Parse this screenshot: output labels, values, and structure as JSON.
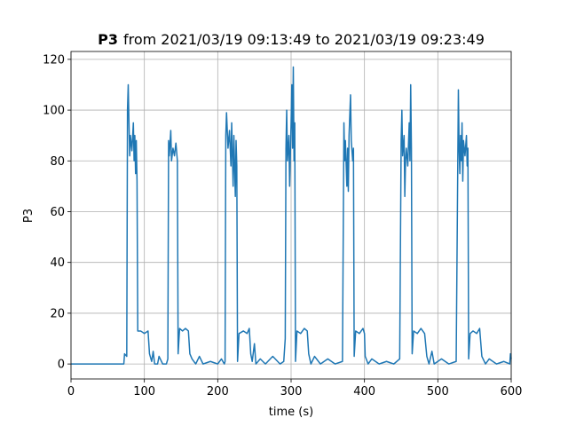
{
  "chart_data": {
    "type": "line",
    "title": [
      "P3",
      "from 2021/03/19 09:13:49 to 2021/03/19 09:23:49"
    ],
    "xlabel": "time (s)",
    "ylabel": "P3",
    "color": "#1f77b4",
    "grid": true,
    "xlim": [
      0,
      600
    ],
    "xticks": [
      0,
      100,
      200,
      300,
      400,
      500,
      600
    ],
    "ylim": [
      -5.9,
      123.1
    ],
    "yticks": [
      0,
      20,
      40,
      60,
      80,
      100,
      120
    ],
    "x": [
      0,
      72,
      73,
      76,
      77,
      78,
      79,
      80,
      81,
      83,
      85,
      86,
      87,
      88,
      89,
      90,
      91,
      95,
      100,
      105,
      107,
      110,
      112,
      114,
      118,
      120,
      125,
      130,
      132,
      133,
      134,
      136,
      137,
      139,
      141,
      143,
      145,
      146,
      148,
      152,
      156,
      160,
      162,
      165,
      170,
      175,
      180,
      190,
      200,
      205,
      209,
      210,
      211,
      212,
      214,
      216,
      218,
      219,
      221,
      222,
      224,
      225,
      226,
      227,
      229,
      235,
      240,
      243,
      245,
      247,
      250,
      252,
      258,
      265,
      275,
      285,
      290,
      292,
      293,
      294,
      295,
      297,
      298,
      300,
      301,
      302,
      303,
      304,
      305,
      306,
      308,
      313,
      318,
      322,
      324,
      327,
      332,
      340,
      350,
      360,
      370,
      372,
      373,
      374,
      376,
      377,
      378,
      379,
      380,
      381,
      382,
      384,
      385,
      386,
      388,
      393,
      398,
      400,
      401,
      405,
      410,
      420,
      430,
      440,
      448,
      450,
      451,
      452,
      454,
      455,
      456,
      457,
      459,
      461,
      462,
      463,
      464,
      465,
      467,
      472,
      477,
      482,
      485,
      488,
      492,
      495,
      505,
      515,
      525,
      528,
      529,
      530,
      531,
      532,
      533,
      534,
      535,
      537,
      539,
      540,
      541,
      542,
      544,
      548,
      553,
      557,
      560,
      565,
      570,
      580,
      590,
      598,
      599,
      600
    ],
    "values": [
      0,
      0,
      4,
      3,
      100,
      110,
      95,
      82,
      90,
      84,
      95,
      80,
      90,
      75,
      88,
      72,
      13,
      13,
      12,
      13,
      4,
      1,
      5,
      0,
      0,
      3,
      0,
      0,
      2,
      88,
      82,
      92,
      80,
      85,
      82,
      87,
      80,
      4,
      14,
      13,
      14,
      13,
      4,
      2,
      0,
      3,
      0,
      1,
      0,
      2,
      0,
      1,
      90,
      99,
      85,
      92,
      78,
      95,
      70,
      90,
      66,
      88,
      78,
      1,
      12,
      13,
      12,
      14,
      4,
      1,
      8,
      0,
      2,
      0,
      3,
      0,
      1,
      10,
      85,
      100,
      80,
      90,
      70,
      95,
      110,
      85,
      117,
      80,
      95,
      1,
      13,
      12,
      14,
      13,
      4,
      0,
      3,
      0,
      2,
      0,
      1,
      95,
      80,
      88,
      70,
      85,
      68,
      90,
      98,
      106,
      88,
      80,
      85,
      3,
      13,
      12,
      14,
      12,
      3,
      0,
      2,
      0,
      1,
      0,
      2,
      88,
      100,
      82,
      90,
      66,
      80,
      85,
      78,
      95,
      80,
      110,
      85,
      4,
      13,
      12,
      14,
      12,
      3,
      0,
      5,
      0,
      2,
      0,
      1,
      108,
      85,
      75,
      90,
      80,
      95,
      72,
      88,
      82,
      90,
      78,
      85,
      2,
      12,
      13,
      12,
      14,
      3,
      0,
      2,
      0,
      1,
      0,
      4,
      2
    ]
  }
}
